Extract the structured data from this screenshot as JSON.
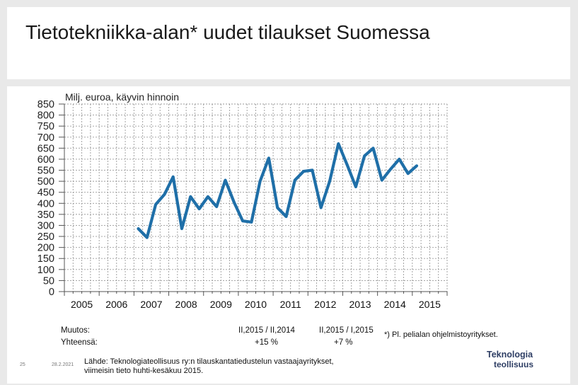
{
  "title": "Tietotekniikka-alan* uudet tilaukset Suomessa",
  "chart_data": {
    "type": "line",
    "unit_label": "Milj. euroa, käyvin hinnoin",
    "y_ticks": [
      "850",
      "800",
      "750",
      "700",
      "650",
      "600",
      "550",
      "500",
      "450",
      "400",
      "350",
      "300",
      "250",
      "200",
      "150",
      "100",
      "50",
      "0"
    ],
    "ylim": [
      0,
      850
    ],
    "x_tick_labels": [
      "2005",
      "2006",
      "2007",
      "2008",
      "2009",
      "2010",
      "2011",
      "2012",
      "2013",
      "2014",
      "2015"
    ],
    "grid": true,
    "line_color": "#1f6fa8",
    "series": [
      {
        "values": [
          {
            "year": 2007,
            "quarter": 1,
            "value": 285
          },
          {
            "year": 2007,
            "quarter": 2,
            "value": 245
          },
          {
            "year": 2007,
            "quarter": 3,
            "value": 395
          },
          {
            "year": 2007,
            "quarter": 4,
            "value": 440
          },
          {
            "year": 2008,
            "quarter": 1,
            "value": 520
          },
          {
            "year": 2008,
            "quarter": 2,
            "value": 285
          },
          {
            "year": 2008,
            "quarter": 3,
            "value": 430
          },
          {
            "year": 2008,
            "quarter": 4,
            "value": 375
          },
          {
            "year": 2009,
            "quarter": 1,
            "value": 430
          },
          {
            "year": 2009,
            "quarter": 2,
            "value": 385
          },
          {
            "year": 2009,
            "quarter": 3,
            "value": 505
          },
          {
            "year": 2009,
            "quarter": 4,
            "value": 405
          },
          {
            "year": 2010,
            "quarter": 1,
            "value": 320
          },
          {
            "year": 2010,
            "quarter": 2,
            "value": 315
          },
          {
            "year": 2010,
            "quarter": 3,
            "value": 500
          },
          {
            "year": 2010,
            "quarter": 4,
            "value": 605
          },
          {
            "year": 2011,
            "quarter": 1,
            "value": 380
          },
          {
            "year": 2011,
            "quarter": 2,
            "value": 340
          },
          {
            "year": 2011,
            "quarter": 3,
            "value": 505
          },
          {
            "year": 2011,
            "quarter": 4,
            "value": 545
          },
          {
            "year": 2012,
            "quarter": 1,
            "value": 550
          },
          {
            "year": 2012,
            "quarter": 2,
            "value": 380
          },
          {
            "year": 2012,
            "quarter": 3,
            "value": 500
          },
          {
            "year": 2012,
            "quarter": 4,
            "value": 670
          },
          {
            "year": 2013,
            "quarter": 1,
            "value": 575
          },
          {
            "year": 2013,
            "quarter": 2,
            "value": 475
          },
          {
            "year": 2013,
            "quarter": 3,
            "value": 615
          },
          {
            "year": 2013,
            "quarter": 4,
            "value": 650
          },
          {
            "year": 2014,
            "quarter": 1,
            "value": 505
          },
          {
            "year": 2014,
            "quarter": 2,
            "value": 555
          },
          {
            "year": 2014,
            "quarter": 3,
            "value": 600
          },
          {
            "year": 2014,
            "quarter": 4,
            "value": 535
          },
          {
            "year": 2015,
            "quarter": 1,
            "value": 570
          }
        ]
      }
    ]
  },
  "table": {
    "row1_label": "Muutos:",
    "row2_label": "Yhteensä:",
    "col1_header": "II,2015 / II,2014",
    "col1_value": "+15 %",
    "col2_header": "II,2015 / I,2015",
    "col2_value": "+7 %"
  },
  "footnote": "*) Pl. pelialan ohjelmistoyritykset.",
  "source_line1": "Lähde: Teknologiateollisuus ry:n tilauskantatiedustelun vastaajayritykset,",
  "source_line2": "viimeisin tieto huhti-kesäkuu 2015.",
  "page_number": "25",
  "date": "28.2.2021",
  "logo_line1": "Teknologia",
  "logo_line2": "teollisuus"
}
